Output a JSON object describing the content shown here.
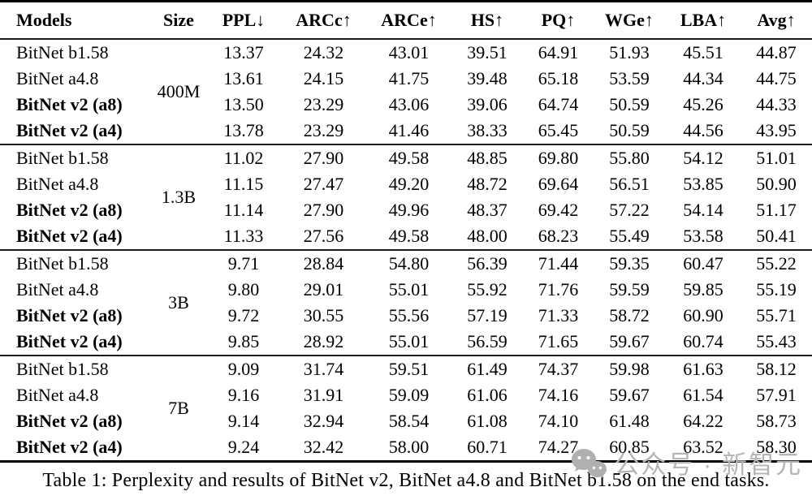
{
  "table": {
    "columns": [
      "Models",
      "Size",
      "PPL↓",
      "ARCc↑",
      "ARCe↑",
      "HS↑",
      "PQ↑",
      "WGe↑",
      "LBA↑",
      "Avg↑"
    ],
    "groups": [
      {
        "size": "400M",
        "rows": [
          {
            "model": "BitNet b1.58",
            "bold": false,
            "values": [
              "13.37",
              "24.32",
              "43.01",
              "39.51",
              "64.91",
              "51.93",
              "45.51",
              "44.87"
            ]
          },
          {
            "model": "BitNet a4.8",
            "bold": false,
            "values": [
              "13.61",
              "24.15",
              "41.75",
              "39.48",
              "65.18",
              "53.59",
              "44.34",
              "44.75"
            ]
          },
          {
            "model": "BitNet v2 (a8)",
            "bold": true,
            "values": [
              "13.50",
              "23.29",
              "43.06",
              "39.06",
              "64.74",
              "50.59",
              "45.26",
              "44.33"
            ]
          },
          {
            "model": "BitNet v2 (a4)",
            "bold": true,
            "values": [
              "13.78",
              "23.29",
              "41.46",
              "38.33",
              "65.45",
              "50.59",
              "44.56",
              "43.95"
            ]
          }
        ]
      },
      {
        "size": "1.3B",
        "rows": [
          {
            "model": "BitNet b1.58",
            "bold": false,
            "values": [
              "11.02",
              "27.90",
              "49.58",
              "48.85",
              "69.80",
              "55.80",
              "54.12",
              "51.01"
            ]
          },
          {
            "model": "BitNet a4.8",
            "bold": false,
            "values": [
              "11.15",
              "27.47",
              "49.20",
              "48.72",
              "69.64",
              "56.51",
              "53.85",
              "50.90"
            ]
          },
          {
            "model": "BitNet v2 (a8)",
            "bold": true,
            "values": [
              "11.14",
              "27.90",
              "49.96",
              "48.37",
              "69.42",
              "57.22",
              "54.14",
              "51.17"
            ]
          },
          {
            "model": "BitNet v2 (a4)",
            "bold": true,
            "values": [
              "11.33",
              "27.56",
              "49.58",
              "48.00",
              "68.23",
              "55.49",
              "53.58",
              "50.41"
            ]
          }
        ]
      },
      {
        "size": "3B",
        "rows": [
          {
            "model": "BitNet b1.58",
            "bold": false,
            "values": [
              "9.71",
              "28.84",
              "54.80",
              "56.39",
              "71.44",
              "59.35",
              "60.47",
              "55.22"
            ]
          },
          {
            "model": "BitNet a4.8",
            "bold": false,
            "values": [
              "9.80",
              "29.01",
              "55.01",
              "55.92",
              "71.76",
              "59.59",
              "59.85",
              "55.19"
            ]
          },
          {
            "model": "BitNet v2 (a8)",
            "bold": true,
            "values": [
              "9.72",
              "30.55",
              "55.56",
              "57.19",
              "71.33",
              "58.72",
              "60.90",
              "55.71"
            ]
          },
          {
            "model": "BitNet v2 (a4)",
            "bold": true,
            "values": [
              "9.85",
              "28.92",
              "55.01",
              "56.59",
              "71.65",
              "59.67",
              "60.74",
              "55.43"
            ]
          }
        ]
      },
      {
        "size": "7B",
        "rows": [
          {
            "model": "BitNet b1.58",
            "bold": false,
            "values": [
              "9.09",
              "31.74",
              "59.51",
              "61.49",
              "74.37",
              "59.98",
              "61.63",
              "58.12"
            ]
          },
          {
            "model": "BitNet a4.8",
            "bold": false,
            "values": [
              "9.16",
              "31.91",
              "59.09",
              "61.06",
              "74.16",
              "59.67",
              "61.54",
              "57.91"
            ]
          },
          {
            "model": "BitNet v2 (a8)",
            "bold": true,
            "values": [
              "9.14",
              "32.94",
              "58.54",
              "61.08",
              "74.10",
              "61.48",
              "64.22",
              "58.73"
            ]
          },
          {
            "model": "BitNet v2 (a4)",
            "bold": true,
            "values": [
              "9.24",
              "32.42",
              "58.00",
              "60.71",
              "74.27",
              "60.85",
              "63.52",
              "58.30"
            ]
          }
        ]
      }
    ]
  },
  "caption": "Table 1: Perplexity and results of BitNet v2, BitNet a4.8 and BitNet b1.58 on the end tasks.",
  "watermark": {
    "icon": "wechat-icon",
    "text": "公众号 · 新智元",
    "color": "#b5b5b5"
  }
}
